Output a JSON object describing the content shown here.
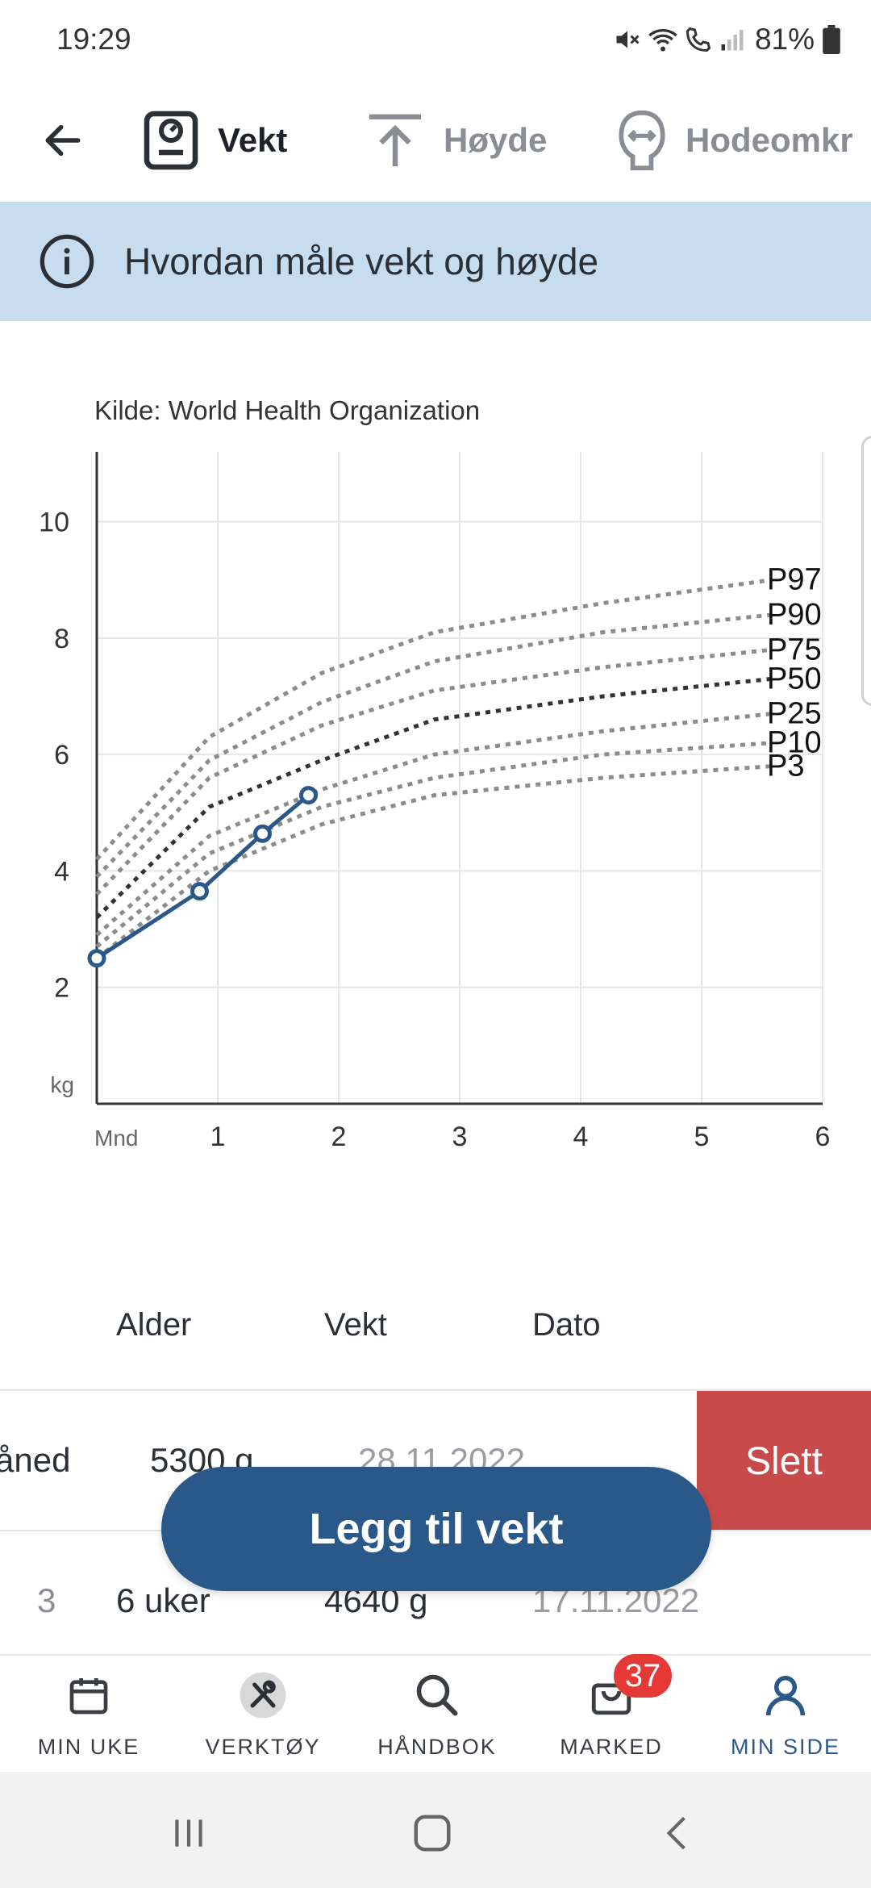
{
  "status_bar": {
    "time": "19:29",
    "battery": "81%"
  },
  "tabs": [
    {
      "label": "Vekt",
      "icon": "scale-icon",
      "active": true
    },
    {
      "label": "Høyde",
      "icon": "height-icon",
      "active": false
    },
    {
      "label": "Hodeomkr",
      "icon": "head-circumference-icon",
      "active": false
    }
  ],
  "info_banner": {
    "text": "Hvordan måle vekt og høyde",
    "icon": "info-icon"
  },
  "chart": {
    "source": "Kilde: World Health Organization",
    "y_unit": "kg",
    "x_unit": "Mnd"
  },
  "chart_data": {
    "type": "line",
    "x_ticks": [
      "1",
      "2",
      "3",
      "4",
      "5",
      "6"
    ],
    "y_ticks": [
      "2",
      "4",
      "6",
      "8",
      "10"
    ],
    "xlim": [
      0,
      6
    ],
    "ylim": [
      0,
      11.2
    ],
    "grid": true,
    "measured": {
      "color": "#2a5888",
      "points": [
        [
          0,
          2.5
        ],
        [
          0.85,
          3.65
        ],
        [
          1.37,
          4.64
        ],
        [
          1.75,
          5.3
        ]
      ]
    },
    "percentiles": [
      {
        "name": "P97",
        "values": [
          4.2,
          6.3,
          7.4,
          8.1,
          8.6,
          9.0
        ],
        "color": "#8c8c8c"
      },
      {
        "name": "P90",
        "values": [
          3.9,
          5.9,
          6.9,
          7.6,
          8.1,
          8.4
        ],
        "color": "#8c8c8c"
      },
      {
        "name": "P75",
        "values": [
          3.6,
          5.6,
          6.5,
          7.1,
          7.5,
          7.8
        ],
        "color": "#8c8c8c"
      },
      {
        "name": "P50",
        "values": [
          3.2,
          5.1,
          5.9,
          6.6,
          7.0,
          7.3
        ],
        "color": "#333333"
      },
      {
        "name": "P25",
        "values": [
          2.9,
          4.6,
          5.4,
          6.0,
          6.4,
          6.7
        ],
        "color": "#8c8c8c"
      },
      {
        "name": "P10",
        "values": [
          2.7,
          4.3,
          5.1,
          5.6,
          6.0,
          6.2
        ],
        "color": "#8c8c8c"
      },
      {
        "name": "P3",
        "values": [
          2.5,
          4.0,
          4.8,
          5.3,
          5.6,
          5.8
        ],
        "color": "#8c8c8c"
      }
    ]
  },
  "table": {
    "headers": {
      "alder": "Alder",
      "vekt": "Vekt",
      "dato": "Dato"
    },
    "rows": [
      {
        "index": "",
        "age": "åned",
        "weight": "5300 g",
        "date": "28.11.2022",
        "delete_label": "Slett"
      },
      {
        "index": "3",
        "age": "6 uker",
        "weight": "4640 g",
        "date": "17.11.2022"
      }
    ]
  },
  "add_button": {
    "label": "Legg til vekt"
  },
  "bottom_nav": [
    {
      "label": "MIN UKE",
      "icon": "calendar-icon"
    },
    {
      "label": "VERKTØY",
      "icon": "tools-icon"
    },
    {
      "label": "HÅNDBOK",
      "icon": "search-icon"
    },
    {
      "label": "MARKED",
      "icon": "shopping-bag-icon",
      "badge": "37"
    },
    {
      "label": "MIN SIDE",
      "icon": "person-icon",
      "active": true
    }
  ]
}
